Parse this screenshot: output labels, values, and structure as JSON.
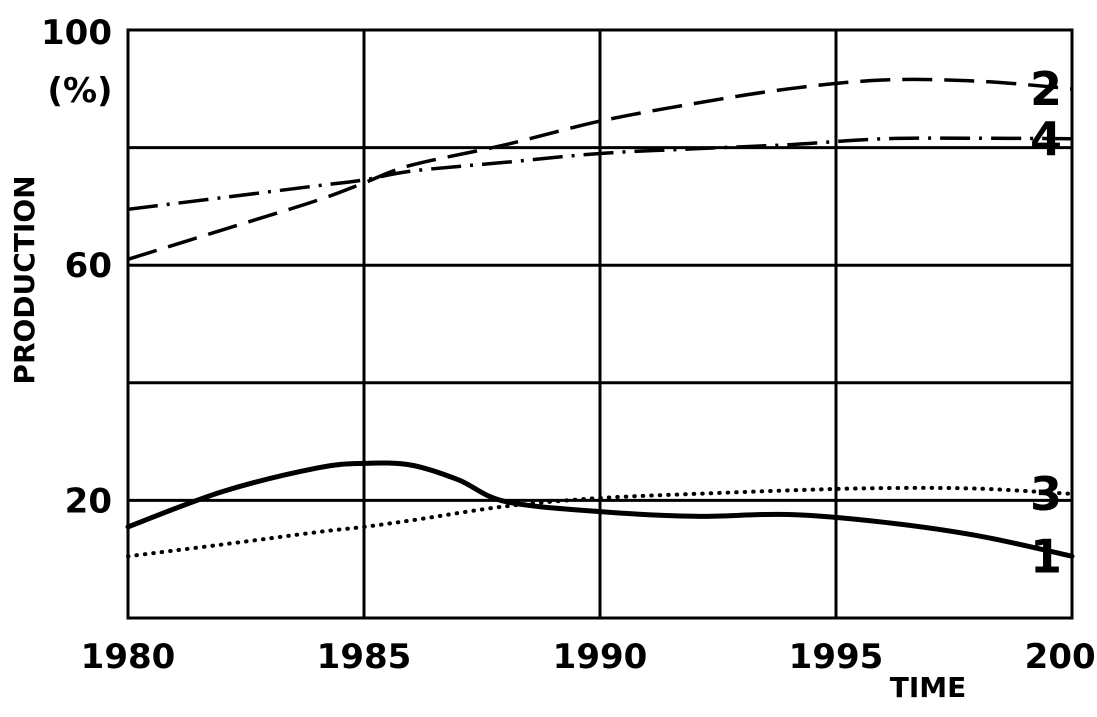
{
  "chart_data": {
    "type": "line",
    "title": "",
    "xlabel": "TIME",
    "ylabel": "PRODUCTION",
    "ylabel_unit": "(%)",
    "xlim": [
      1980,
      2000
    ],
    "ylim": [
      0,
      100
    ],
    "grid": true,
    "x_ticks": [
      {
        "value": 1980,
        "label": "1980"
      },
      {
        "value": 1985,
        "label": "1985"
      },
      {
        "value": 1990,
        "label": "1990"
      },
      {
        "value": 1995,
        "label": "1995"
      },
      {
        "value": 2000,
        "label": "2000"
      }
    ],
    "y_ticks": [
      {
        "value": 20,
        "label": "20"
      },
      {
        "value": 60,
        "label": "60"
      },
      {
        "value": 100,
        "label": "100"
      }
    ],
    "y_gridlines": [
      20,
      40,
      60,
      80,
      100
    ],
    "series": [
      {
        "name": "1",
        "style": "solid",
        "x": [
          1980,
          1982,
          1984,
          1985,
          1986,
          1987,
          1988,
          1990,
          1992,
          1994,
          1996,
          1998,
          2000
        ],
        "y": [
          15.5,
          21.5,
          25.5,
          26.3,
          26,
          23.5,
          19.8,
          18.1,
          17.3,
          17.6,
          16.3,
          14,
          10.5
        ]
      },
      {
        "name": "2",
        "style": "dashed",
        "x": [
          1980,
          1982,
          1984,
          1985,
          1986,
          1988,
          1990,
          1992,
          1994,
          1996,
          1998,
          2000
        ],
        "y": [
          61,
          66,
          71,
          74,
          77,
          80.5,
          84.5,
          87.5,
          90,
          91.5,
          91.3,
          90
        ]
      },
      {
        "name": "3",
        "style": "dotted",
        "x": [
          1980,
          1982,
          1984,
          1985,
          1986,
          1988,
          1990,
          1992,
          1994,
          1996,
          1998,
          2000
        ],
        "y": [
          10.5,
          12.5,
          14.6,
          15.5,
          16.6,
          19,
          20.4,
          21.1,
          21.7,
          22.1,
          22,
          21.1
        ]
      },
      {
        "name": "4",
        "style": "dashdot",
        "x": [
          1980,
          1982,
          1984,
          1985,
          1986,
          1988,
          1990,
          1992,
          1994,
          1996,
          1998,
          2000
        ],
        "y": [
          69.5,
          71.5,
          73.5,
          74.5,
          76,
          77.5,
          79,
          79.8,
          80.5,
          81.5,
          81.6,
          81.5
        ]
      }
    ]
  }
}
